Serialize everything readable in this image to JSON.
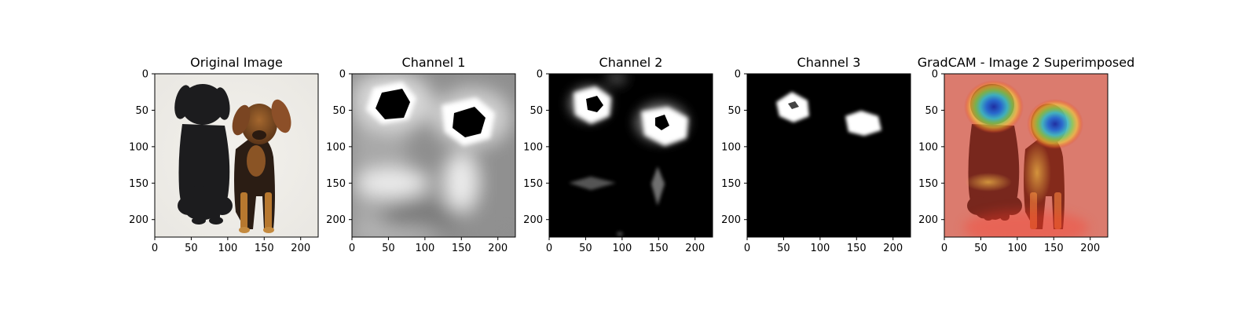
{
  "figure": {
    "background": "#ffffff"
  },
  "chart_data": [
    {
      "type": "heatmap",
      "title": "Original Image",
      "content": "photo",
      "xlim": [
        0,
        224
      ],
      "ylim": [
        224,
        0
      ],
      "xticks": [
        0,
        50,
        100,
        150,
        200
      ],
      "yticks": [
        0,
        50,
        100,
        150,
        200
      ],
      "grid": false,
      "colormap": "rgb",
      "features": [
        {
          "label": "black puppy",
          "center": [
            65,
            110
          ]
        },
        {
          "label": "tan puppy",
          "center": [
            145,
            120
          ]
        }
      ]
    },
    {
      "type": "heatmap",
      "title": "Channel 1",
      "content": "grayscale",
      "xlim": [
        0,
        224
      ],
      "ylim": [
        224,
        0
      ],
      "xticks": [
        0,
        50,
        100,
        150,
        200
      ],
      "yticks": [
        0,
        50,
        100,
        150,
        200
      ],
      "grid": false,
      "colormap": "gray"
    },
    {
      "type": "heatmap",
      "title": "Channel 2",
      "content": "grayscale",
      "xlim": [
        0,
        224
      ],
      "ylim": [
        224,
        0
      ],
      "xticks": [
        0,
        50,
        100,
        150,
        200
      ],
      "yticks": [
        0,
        50,
        100,
        150,
        200
      ],
      "grid": false,
      "colormap": "gray"
    },
    {
      "type": "heatmap",
      "title": "Channel 3",
      "content": "grayscale",
      "xlim": [
        0,
        224
      ],
      "ylim": [
        224,
        0
      ],
      "xticks": [
        0,
        50,
        100,
        150,
        200
      ],
      "yticks": [
        0,
        50,
        100,
        150,
        200
      ],
      "grid": false,
      "colormap": "gray"
    },
    {
      "type": "heatmap",
      "title": "GradCAM - Image 2 Superimposed",
      "content": "overlay",
      "xlim": [
        0,
        224
      ],
      "ylim": [
        224,
        0
      ],
      "xticks": [
        0,
        50,
        100,
        150,
        200
      ],
      "yticks": [
        0,
        50,
        100,
        150,
        200
      ],
      "grid": false,
      "colormap": "jet",
      "hotspots": [
        {
          "center": [
            62,
            42
          ]
        },
        {
          "center": [
            145,
            65
          ]
        }
      ]
    }
  ]
}
